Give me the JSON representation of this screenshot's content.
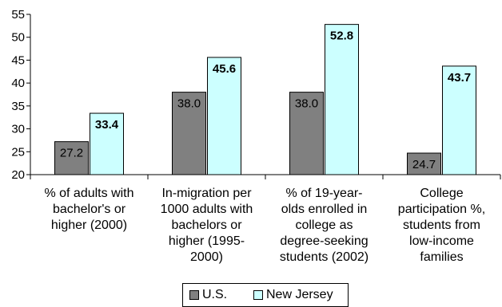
{
  "chart_data": {
    "type": "bar",
    "title": "",
    "xlabel": "",
    "ylabel": "",
    "ylim": [
      20,
      55
    ],
    "y_ticks": [
      "20",
      "25",
      "30",
      "35",
      "40",
      "45",
      "50",
      "55"
    ],
    "categories": [
      "% of adults with\nbachelor's or\nhigher (2000)",
      "In-migration per\n1000 adults with\nbachelors or\nhigher (1995-\n2000)",
      "% of 19-year-\nolds enrolled in\ncollege as\ndegree-seeking\nstudents (2002)",
      "College\nparticipation %,\nstudents from\nlow-income\nfamilies"
    ],
    "series": [
      {
        "name": "U.S.",
        "values": [
          27.2,
          38.0,
          38.0,
          24.7
        ],
        "labels": [
          "27.2",
          "38.0",
          "38.0",
          "24.7"
        ],
        "color": "#808080"
      },
      {
        "name": "New Jersey",
        "values": [
          33.4,
          45.6,
          52.8,
          43.7
        ],
        "labels": [
          "33.4",
          "45.6",
          "52.8",
          "43.7"
        ],
        "color": "#ccffff"
      }
    ],
    "grid": false,
    "legend_position": "bottom"
  }
}
